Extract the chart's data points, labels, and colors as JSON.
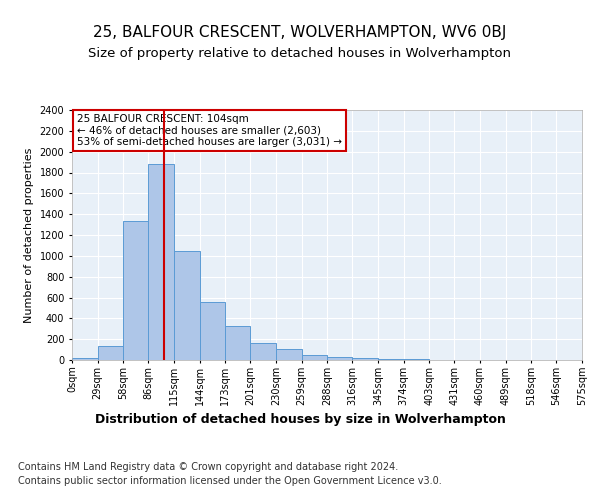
{
  "title": "25, BALFOUR CRESCENT, WOLVERHAMPTON, WV6 0BJ",
  "subtitle": "Size of property relative to detached houses in Wolverhampton",
  "xlabel": "Distribution of detached houses by size in Wolverhampton",
  "ylabel": "Number of detached properties",
  "footer_line1": "Contains HM Land Registry data © Crown copyright and database right 2024.",
  "footer_line2": "Contains public sector information licensed under the Open Government Licence v3.0.",
  "bar_edges": [
    0,
    29,
    58,
    86,
    115,
    144,
    173,
    201,
    230,
    259,
    288,
    316,
    345,
    374,
    403,
    431,
    460,
    489,
    518,
    546,
    575
  ],
  "bar_heights": [
    20,
    130,
    1330,
    1880,
    1050,
    560,
    330,
    165,
    110,
    50,
    30,
    20,
    5,
    5,
    0,
    0,
    0,
    0,
    0,
    0
  ],
  "bar_color": "#aec6e8",
  "bar_edge_color": "#5b9bd5",
  "vline_x": 104,
  "vline_color": "#cc0000",
  "annotation_text": "25 BALFOUR CRESCENT: 104sqm\n← 46% of detached houses are smaller (2,603)\n53% of semi-detached houses are larger (3,031) →",
  "annotation_box_color": "#cc0000",
  "ylim": [
    0,
    2400
  ],
  "yticks": [
    0,
    200,
    400,
    600,
    800,
    1000,
    1200,
    1400,
    1600,
    1800,
    2000,
    2200,
    2400
  ],
  "tick_labels": [
    "0sqm",
    "29sqm",
    "58sqm",
    "86sqm",
    "115sqm",
    "144sqm",
    "173sqm",
    "201sqm",
    "230sqm",
    "259sqm",
    "288sqm",
    "316sqm",
    "345sqm",
    "374sqm",
    "403sqm",
    "431sqm",
    "460sqm",
    "489sqm",
    "518sqm",
    "546sqm",
    "575sqm"
  ],
  "bg_color": "#e8f0f8",
  "fig_bg_color": "#ffffff",
  "title_fontsize": 11,
  "subtitle_fontsize": 9.5,
  "xlabel_fontsize": 9,
  "ylabel_fontsize": 8,
  "tick_fontsize": 7,
  "footer_fontsize": 7,
  "annotation_fontsize": 7.5
}
